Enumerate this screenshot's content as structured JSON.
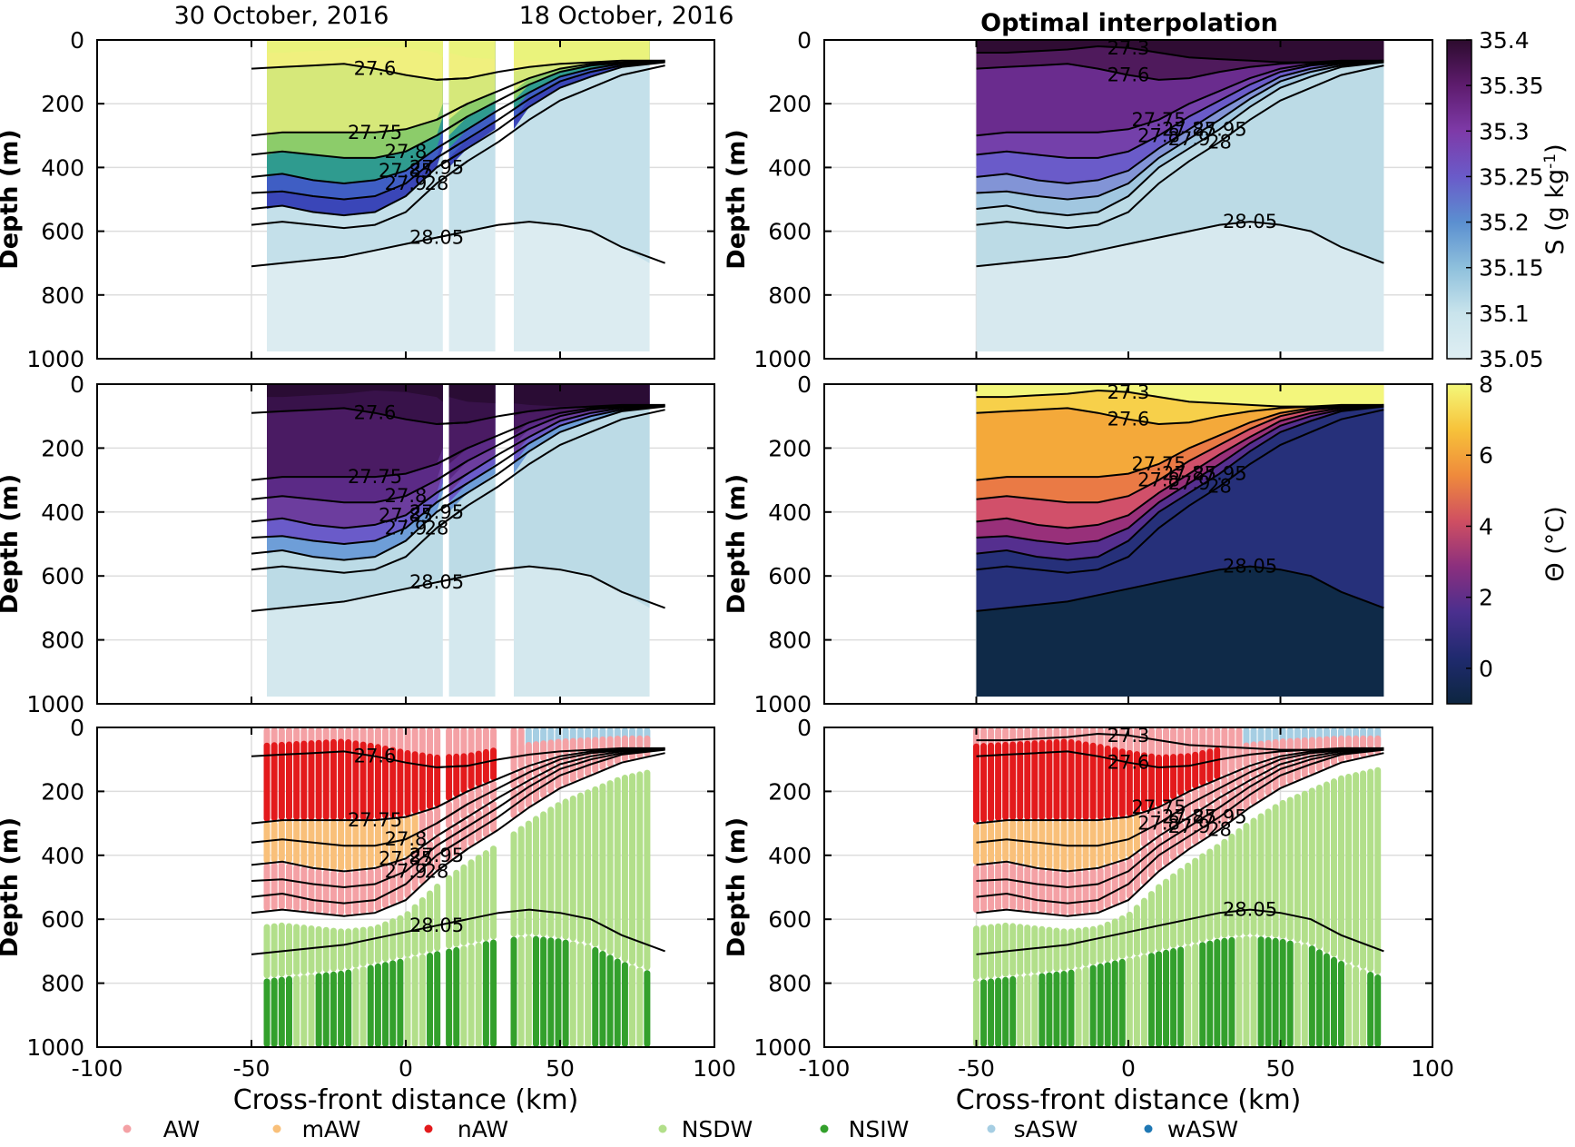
{
  "chart_data": {
    "type": "heatmap",
    "titles": {
      "left_a": "30 October, 2016",
      "left_b": "18 October, 2016",
      "right": "Optimal interpolation"
    },
    "xlabel": "Cross-front distance (km)",
    "ylabel": "Depth (m)",
    "xlim": [
      -100,
      100
    ],
    "ylim": [
      0,
      1000
    ],
    "y_reversed": true,
    "xticks": [
      "-100",
      "-50",
      "0",
      "50",
      "100"
    ],
    "yticks": [
      "0",
      "200",
      "400",
      "600",
      "800",
      "1000"
    ],
    "grid": true,
    "colorbars": [
      {
        "label": "S_A (g kg⁻¹)",
        "label_main": "S",
        "label_units": "(g kg",
        "label_sup": "-1",
        "label_close": ")",
        "ticks": [
          "35.4",
          "35.35",
          "35.3",
          "35.25",
          "35.2",
          "35.15",
          "35.1",
          "35.05"
        ],
        "range": [
          35.05,
          35.4
        ],
        "colors": [
          "#dfeef3",
          "#c9e4ec",
          "#8ec0dc",
          "#5b8fd0",
          "#6a5bc9",
          "#7e3aa8",
          "#5e1c6e",
          "#2d0b2e"
        ]
      },
      {
        "label": "Θ (°C)",
        "ticks": [
          "8",
          "6",
          "4",
          "2",
          "0"
        ],
        "range": [
          -1,
          8
        ],
        "colors": [
          "#0d2640",
          "#1f2a6e",
          "#4a2f8e",
          "#8b2f7e",
          "#cf4f62",
          "#ef8a3c",
          "#f7c23a",
          "#f4f87a"
        ]
      }
    ],
    "isopycnals": [
      {
        "label": "27.3",
        "depth_m": [
          40,
          40,
          35,
          30,
          20,
          25,
          40,
          55,
          60,
          65,
          70,
          70,
          70,
          70
        ]
      },
      {
        "label": "27.6",
        "depth_m": [
          90,
          85,
          80,
          75,
          90,
          110,
          125,
          120,
          100,
          85,
          75,
          70,
          65,
          65
        ]
      },
      {
        "label": "27.75",
        "depth_m": [
          300,
          290,
          290,
          290,
          290,
          280,
          250,
          200,
          160,
          120,
          90,
          75,
          70,
          65
        ]
      },
      {
        "label": "27.8",
        "depth_m": [
          360,
          350,
          360,
          370,
          370,
          350,
          300,
          240,
          190,
          140,
          100,
          80,
          72,
          66
        ]
      },
      {
        "label": "27.85",
        "depth_m": [
          430,
          420,
          440,
          450,
          440,
          410,
          340,
          280,
          220,
          165,
          115,
          90,
          75,
          67
        ]
      },
      {
        "label": "27.9",
        "depth_m": [
          480,
          475,
          490,
          500,
          490,
          450,
          370,
          310,
          250,
          185,
          130,
          100,
          80,
          68
        ]
      },
      {
        "label": "27.95",
        "depth_m": [
          530,
          520,
          540,
          550,
          540,
          490,
          400,
          340,
          280,
          210,
          150,
          115,
          85,
          70
        ]
      },
      {
        "label": "28",
        "depth_m": [
          580,
          570,
          580,
          590,
          580,
          540,
          450,
          380,
          320,
          250,
          190,
          150,
          110,
          80
        ]
      },
      {
        "label": "28.05",
        "depth_m": [
          710,
          700,
          690,
          680,
          660,
          640,
          620,
          600,
          580,
          570,
          580,
          600,
          650,
          700
        ]
      }
    ],
    "isopycnal_x_km": [
      -50,
      -40,
      -30,
      -20,
      -10,
      0,
      10,
      20,
      30,
      40,
      50,
      60,
      70,
      84
    ],
    "water_masses": [
      {
        "name": "AW",
        "color": "#f4a1a5"
      },
      {
        "name": "mAW",
        "color": "#f9c07a"
      },
      {
        "name": "nAW",
        "color": "#e31a1c"
      },
      {
        "name": "NSDW",
        "color": "#b2df8a"
      },
      {
        "name": "NSIW",
        "color": "#33a02c"
      },
      {
        "name": "sASW",
        "color": "#a6cee3"
      },
      {
        "name": "wASW",
        "color": "#1f78b4"
      }
    ],
    "observed_coverage_km": [
      [
        -45,
        12
      ],
      [
        14,
        29
      ],
      [
        35,
        79
      ]
    ],
    "oi_coverage_km": [
      -50,
      84
    ]
  }
}
